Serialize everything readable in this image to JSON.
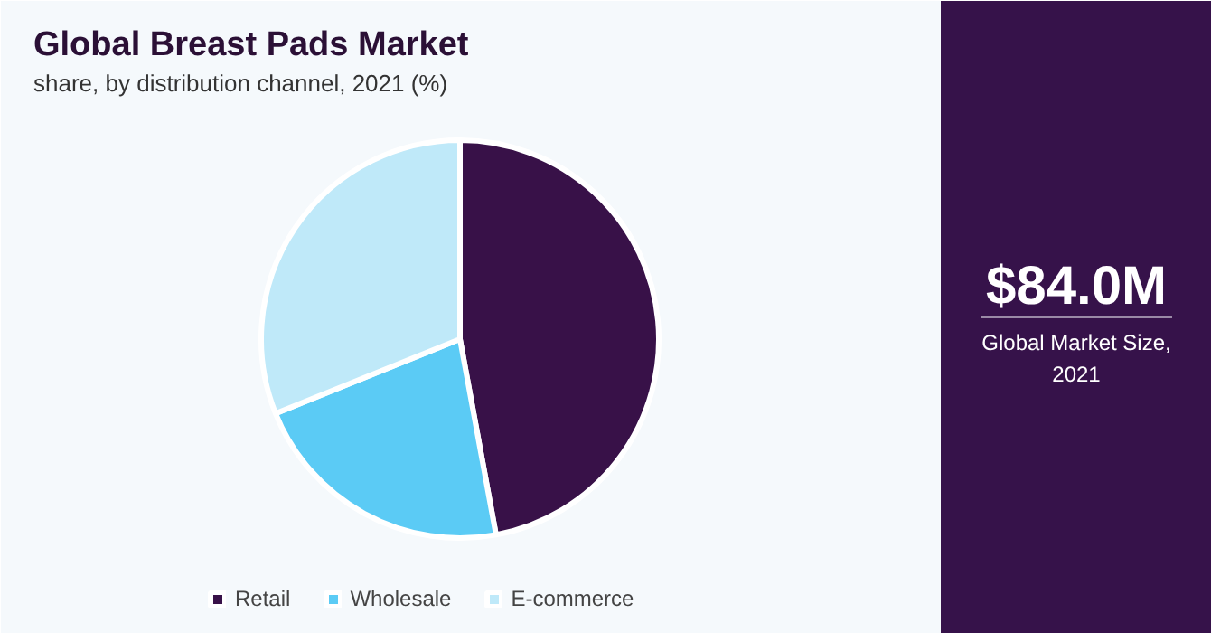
{
  "chart_data": {
    "type": "pie",
    "title": "Global Breast Pads Market",
    "subtitle": "share, by distribution channel, 2021 (%)",
    "categories": [
      "Retail",
      "Wholesale",
      "E-commerce"
    ],
    "values": [
      47.1,
      21.8,
      31.1
    ],
    "colors": [
      "#381148",
      "#5bcbf5",
      "#bfe9f9"
    ],
    "legend": "bottom",
    "annotations": [
      "$84.0M",
      "Global Market Size, 2021"
    ]
  }
}
